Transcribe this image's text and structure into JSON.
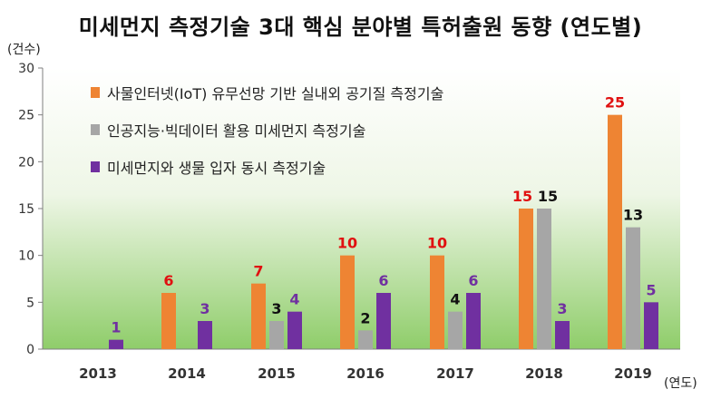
{
  "title": "미세먼지 측정기술 3대 핵심 분야별 특허출원 동향 (연도별)",
  "y_unit": "(건수)",
  "x_unit": "(연도)",
  "colors": {
    "series_1": "#ee8433",
    "series_2": "#a6a6a6",
    "series_3": "#7030a0",
    "label_red": "#e01010",
    "label_black": "#111111",
    "label_purple": "#7030a0"
  },
  "chart_data": {
    "type": "bar",
    "categories": [
      "2013",
      "2014",
      "2015",
      "2016",
      "2017",
      "2018",
      "2019"
    ],
    "series": [
      {
        "name": "사물인터넷(IoT) 유무선망 기반 실내외 공기질 측정기술",
        "values": [
          0,
          6,
          7,
          10,
          10,
          15,
          25
        ],
        "labels": [
          "",
          "6",
          "7",
          "10",
          "10",
          "15",
          "25"
        ]
      },
      {
        "name": "인공지능·빅데이터 활용 미세먼지 측정기술",
        "values": [
          0,
          0,
          3,
          2,
          4,
          15,
          13
        ],
        "labels": [
          "",
          "",
          "3",
          "2",
          "4",
          "15",
          "13"
        ]
      },
      {
        "name": "미세먼지와 생물 입자 동시 측정기술",
        "values": [
          1,
          3,
          4,
          6,
          6,
          3,
          5
        ],
        "labels": [
          "1",
          "3",
          "4",
          "6",
          "6",
          "3",
          "5"
        ]
      }
    ],
    "ylim": [
      0,
      30
    ],
    "yticks": [
      "0",
      "5",
      "10",
      "15",
      "20",
      "25",
      "30"
    ],
    "grid": false,
    "legend": "top-left"
  }
}
